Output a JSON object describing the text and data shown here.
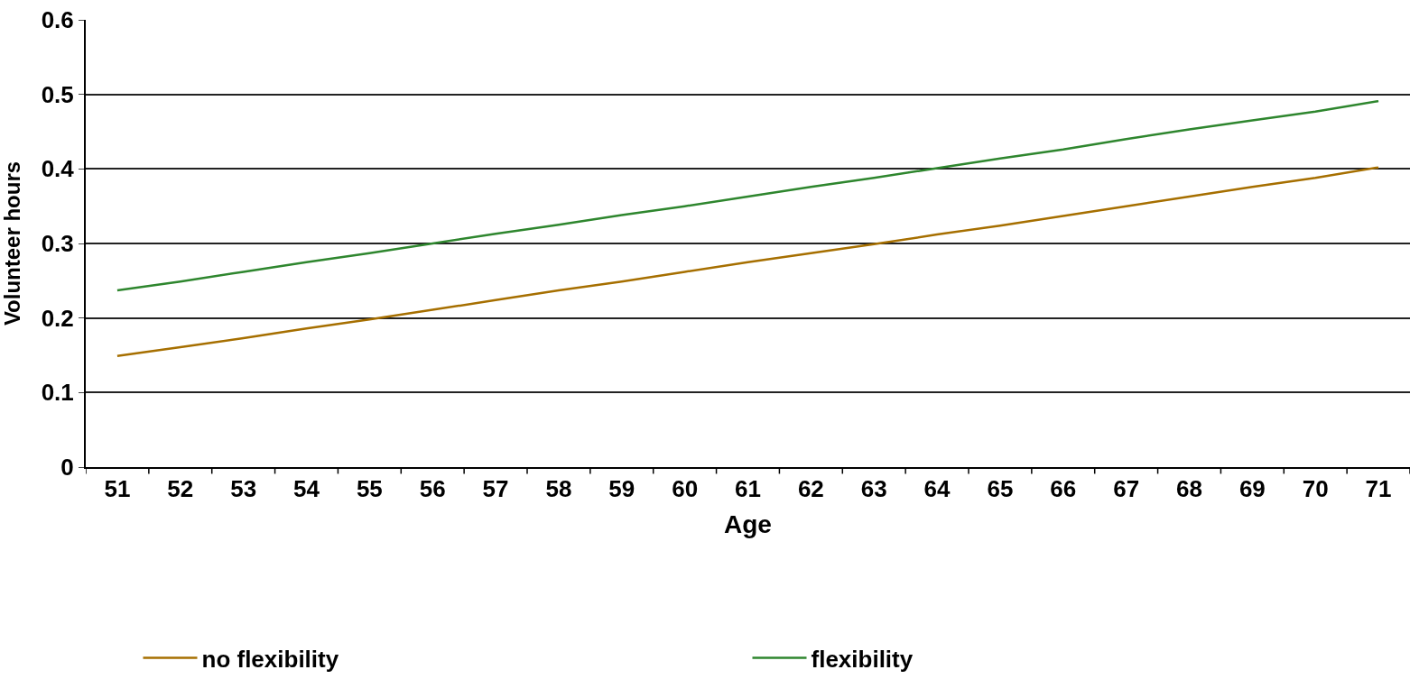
{
  "chart_data": {
    "type": "line",
    "xlabel": "Age",
    "ylabel": "Volunteer hours",
    "categories": [
      "51",
      "52",
      "53",
      "54",
      "55",
      "56",
      "57",
      "58",
      "59",
      "60",
      "61",
      "62",
      "63",
      "64",
      "65",
      "66",
      "67",
      "68",
      "69",
      "70",
      "71"
    ],
    "series": [
      {
        "name": "no flexibility",
        "color": "#a66f00",
        "values": [
          0.149,
          0.161,
          0.173,
          0.186,
          0.198,
          0.211,
          0.224,
          0.237,
          0.249,
          0.262,
          0.275,
          0.287,
          0.299,
          0.312,
          0.324,
          0.337,
          0.35,
          0.363,
          0.376,
          0.388,
          0.402
        ]
      },
      {
        "name": "flexibility",
        "color": "#2e862e",
        "values": [
          0.237,
          0.249,
          0.262,
          0.275,
          0.287,
          0.3,
          0.313,
          0.325,
          0.338,
          0.35,
          0.363,
          0.376,
          0.388,
          0.401,
          0.414,
          0.426,
          0.44,
          0.453,
          0.465,
          0.477,
          0.491
        ]
      }
    ],
    "ylim": [
      0,
      0.6
    ],
    "yticks": [
      0,
      0.1,
      0.2,
      0.3,
      0.4,
      0.5,
      0.6
    ],
    "grid": "y",
    "legend": "bottom",
    "marker": "none",
    "line_style": "solid"
  }
}
